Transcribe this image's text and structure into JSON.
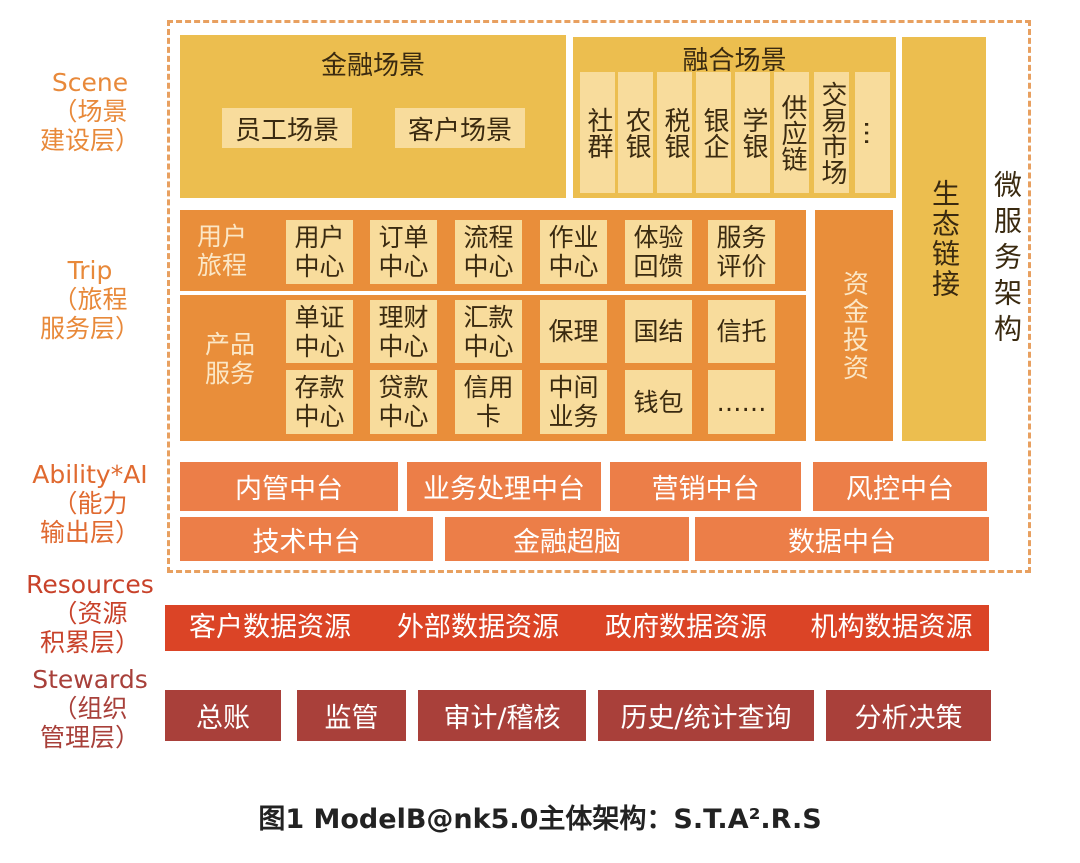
{
  "layers": {
    "scene": {
      "en": "Scene",
      "cn1": "（场景",
      "cn2": "建设层）",
      "color": "#E8893A"
    },
    "trip": {
      "en": "Trip",
      "cn1": "（旅程",
      "cn2": "服务层）",
      "color": "#E8893A"
    },
    "ability": {
      "en": "Ability*AI",
      "cn1": "（能力",
      "cn2": "输出层）",
      "color": "#E06A30"
    },
    "resources": {
      "en": "Resources",
      "cn1": "（资源",
      "cn2": "积累层）",
      "color": "#C8422A"
    },
    "stewards": {
      "en": "Stewards",
      "cn1": "（组织",
      "cn2": "管理层）",
      "color": "#A8403A"
    }
  },
  "scene": {
    "finance": {
      "title": "金融场景",
      "items": [
        "员工场景",
        "客户场景"
      ]
    },
    "fusion": {
      "title": "融合场景",
      "items": [
        "社群",
        "农银",
        "税银",
        "银企",
        "学银",
        "供应链",
        "交易市场",
        "…"
      ]
    },
    "ecosystem": "生态链接"
  },
  "microservice": "微服务架构",
  "trip": {
    "journey": {
      "label": "用户旅程",
      "items": [
        "用户中心",
        "订单中心",
        "流程中心",
        "作业中心",
        "体验回馈",
        "服务评价"
      ]
    },
    "product": {
      "label": "产品服务",
      "items": [
        "单证中心",
        "理财中心",
        "汇款中心",
        "保理",
        "国结",
        "信托",
        "存款中心",
        "贷款中心",
        "信用卡",
        "中间业务",
        "钱包",
        "……"
      ]
    },
    "capital": "资金投资"
  },
  "ability": {
    "row1": [
      "内管中台",
      "业务处理中台",
      "营销中台",
      "风控中台"
    ],
    "row2": [
      "技术中台",
      "金融超脑",
      "数据中台"
    ]
  },
  "resources": [
    "客户数据资源",
    "外部数据资源",
    "政府数据资源",
    "机构数据资源"
  ],
  "stewards": [
    "总账",
    "监管",
    "审计/稽核",
    "历史/统计查询",
    "分析决策"
  ],
  "caption": "图1 ModelB@nk5.0主体架构：S.T.A².R.S",
  "colors": {
    "scene": "#ECBE4F",
    "scene_item": "#F8DC9C",
    "trip": "#E98E3A",
    "ability": "#EC7E48",
    "resources": "#DB4426",
    "stewards": "#A9403A"
  }
}
